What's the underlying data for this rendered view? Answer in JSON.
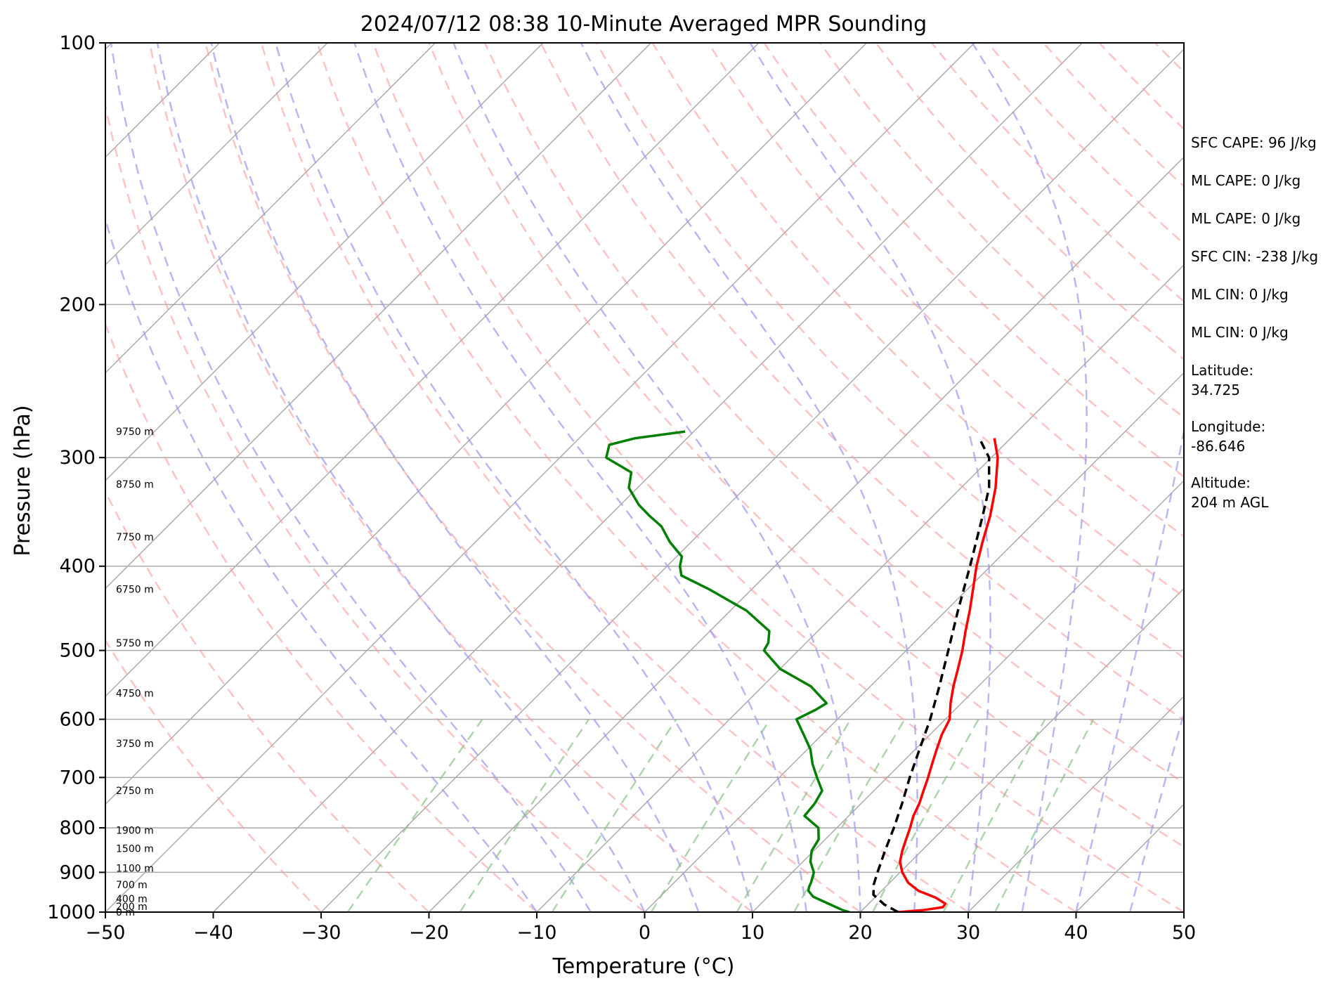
{
  "chart_data": {
    "type": "line",
    "subtype": "skew-T log-P",
    "title": "2024/07/12 08:38 10-Minute Averaged MPR Sounding",
    "xlabel": "Temperature (°C)",
    "ylabel": "Pressure (hPa)",
    "xlim": [
      -50,
      50
    ],
    "ylim": [
      1000,
      100
    ],
    "yscale": "log",
    "x_ticks": [
      "−50",
      "−40",
      "−30",
      "−20",
      "−10",
      "0",
      "10",
      "20",
      "30",
      "40",
      "50"
    ],
    "y_ticks": [
      "100",
      "200",
      "300",
      "400",
      "500",
      "600",
      "700",
      "800",
      "900",
      "1000"
    ],
    "grid": "pressure levels",
    "series": [
      {
        "role": "temperature",
        "color": "#ff0000",
        "style": "solid",
        "points": [
          [
            1000,
            23.5
          ],
          [
            995,
            25.6
          ],
          [
            987,
            27.2
          ],
          [
            978,
            27.1
          ],
          [
            962,
            25.6
          ],
          [
            945,
            23.4
          ],
          [
            925,
            21.7
          ],
          [
            900,
            20.2
          ],
          [
            875,
            19.0
          ],
          [
            850,
            18.2
          ],
          [
            825,
            17.5
          ],
          [
            800,
            16.8
          ],
          [
            775,
            16.0
          ],
          [
            750,
            15.4
          ],
          [
            725,
            14.6
          ],
          [
            700,
            13.8
          ],
          [
            675,
            12.9
          ],
          [
            650,
            12.0
          ],
          [
            625,
            11.1
          ],
          [
            600,
            10.4
          ],
          [
            575,
            9.0
          ],
          [
            550,
            7.7
          ],
          [
            525,
            6.5
          ],
          [
            500,
            5.2
          ],
          [
            475,
            3.7
          ],
          [
            450,
            2.2
          ],
          [
            425,
            0.5
          ],
          [
            400,
            -1.3
          ],
          [
            375,
            -3.0
          ],
          [
            350,
            -4.7
          ],
          [
            325,
            -6.8
          ],
          [
            300,
            -9.4
          ],
          [
            285,
            -11.5
          ]
        ]
      },
      {
        "role": "dewpoint",
        "color": "#008000",
        "style": "solid",
        "points": [
          [
            1000,
            19.0
          ],
          [
            995,
            18.2
          ],
          [
            980,
            16.5
          ],
          [
            960,
            14.2
          ],
          [
            945,
            13.2
          ],
          [
            935,
            12.9
          ],
          [
            925,
            12.7
          ],
          [
            900,
            12.0
          ],
          [
            875,
            10.7
          ],
          [
            850,
            9.8
          ],
          [
            825,
            9.4
          ],
          [
            800,
            8.3
          ],
          [
            775,
            5.9
          ],
          [
            750,
            5.7
          ],
          [
            725,
            5.2
          ],
          [
            700,
            3.5
          ],
          [
            675,
            1.8
          ],
          [
            650,
            0.3
          ],
          [
            625,
            -1.7
          ],
          [
            600,
            -3.8
          ],
          [
            585,
            -2.9
          ],
          [
            575,
            -2.5
          ],
          [
            550,
            -5.5
          ],
          [
            525,
            -10.0
          ],
          [
            500,
            -13.2
          ],
          [
            490,
            -13.5
          ],
          [
            475,
            -14.5
          ],
          [
            450,
            -18.5
          ],
          [
            425,
            -24.0
          ],
          [
            410,
            -27.8
          ],
          [
            400,
            -28.8
          ],
          [
            390,
            -29.5
          ],
          [
            375,
            -32.0
          ],
          [
            360,
            -34.2
          ],
          [
            350,
            -36.3
          ],
          [
            340,
            -38.3
          ],
          [
            325,
            -40.8
          ],
          [
            312,
            -42.0
          ],
          [
            300,
            -45.7
          ],
          [
            290,
            -46.6
          ],
          [
            285,
            -44.8
          ],
          [
            280,
            -40.8
          ]
        ]
      },
      {
        "role": "parcel",
        "color": "#000000",
        "style": "dashed",
        "points": [
          [
            1000,
            23.5
          ],
          [
            980,
            21.5
          ],
          [
            955,
            19.6
          ],
          [
            930,
            18.7
          ],
          [
            900,
            17.9
          ],
          [
            850,
            16.6
          ],
          [
            800,
            15.3
          ],
          [
            750,
            13.8
          ],
          [
            700,
            12.1
          ],
          [
            650,
            10.4
          ],
          [
            600,
            8.6
          ],
          [
            550,
            6.4
          ],
          [
            500,
            3.9
          ],
          [
            450,
            1.1
          ],
          [
            400,
            -1.9
          ],
          [
            350,
            -5.4
          ],
          [
            325,
            -7.4
          ],
          [
            300,
            -10.2
          ],
          [
            285,
            -12.9
          ]
        ]
      }
    ],
    "height_labels": [
      {
        "p": 1000,
        "text": "0 m"
      },
      {
        "p": 985,
        "text": "200 m"
      },
      {
        "p": 965,
        "text": "400 m"
      },
      {
        "p": 930,
        "text": "700 m"
      },
      {
        "p": 890,
        "text": "1100 m"
      },
      {
        "p": 845,
        "text": "1500 m"
      },
      {
        "p": 805,
        "text": "1900 m"
      },
      {
        "p": 725,
        "text": "2750 m"
      },
      {
        "p": 640,
        "text": "3750 m"
      },
      {
        "p": 560,
        "text": "4750 m"
      },
      {
        "p": 490,
        "text": "5750 m"
      },
      {
        "p": 425,
        "text": "6750 m"
      },
      {
        "p": 370,
        "text": "7750 m"
      },
      {
        "p": 322,
        "text": "8750 m"
      },
      {
        "p": 280,
        "text": "9750 m"
      }
    ],
    "annotations": [
      "SFC CAPE: 96 J/kg",
      "ML CAPE: 0 J/kg",
      "ML CAPE: 0 J/kg",
      "SFC CIN: -238 J/kg",
      "ML CIN: 0 J/kg",
      "ML CIN: 0 J/kg",
      "Latitude:\n34.725",
      "Longitude:\n-86.646",
      "Altitude:\n204 m AGL"
    ],
    "colors": {
      "isotherm": "#aaaaaa",
      "dry_adiabat": "#ff9999",
      "moist_adiabat": "#9999ee",
      "mixing_ratio": "#88c488",
      "pressure_grid": "#aaaaaa"
    }
  }
}
